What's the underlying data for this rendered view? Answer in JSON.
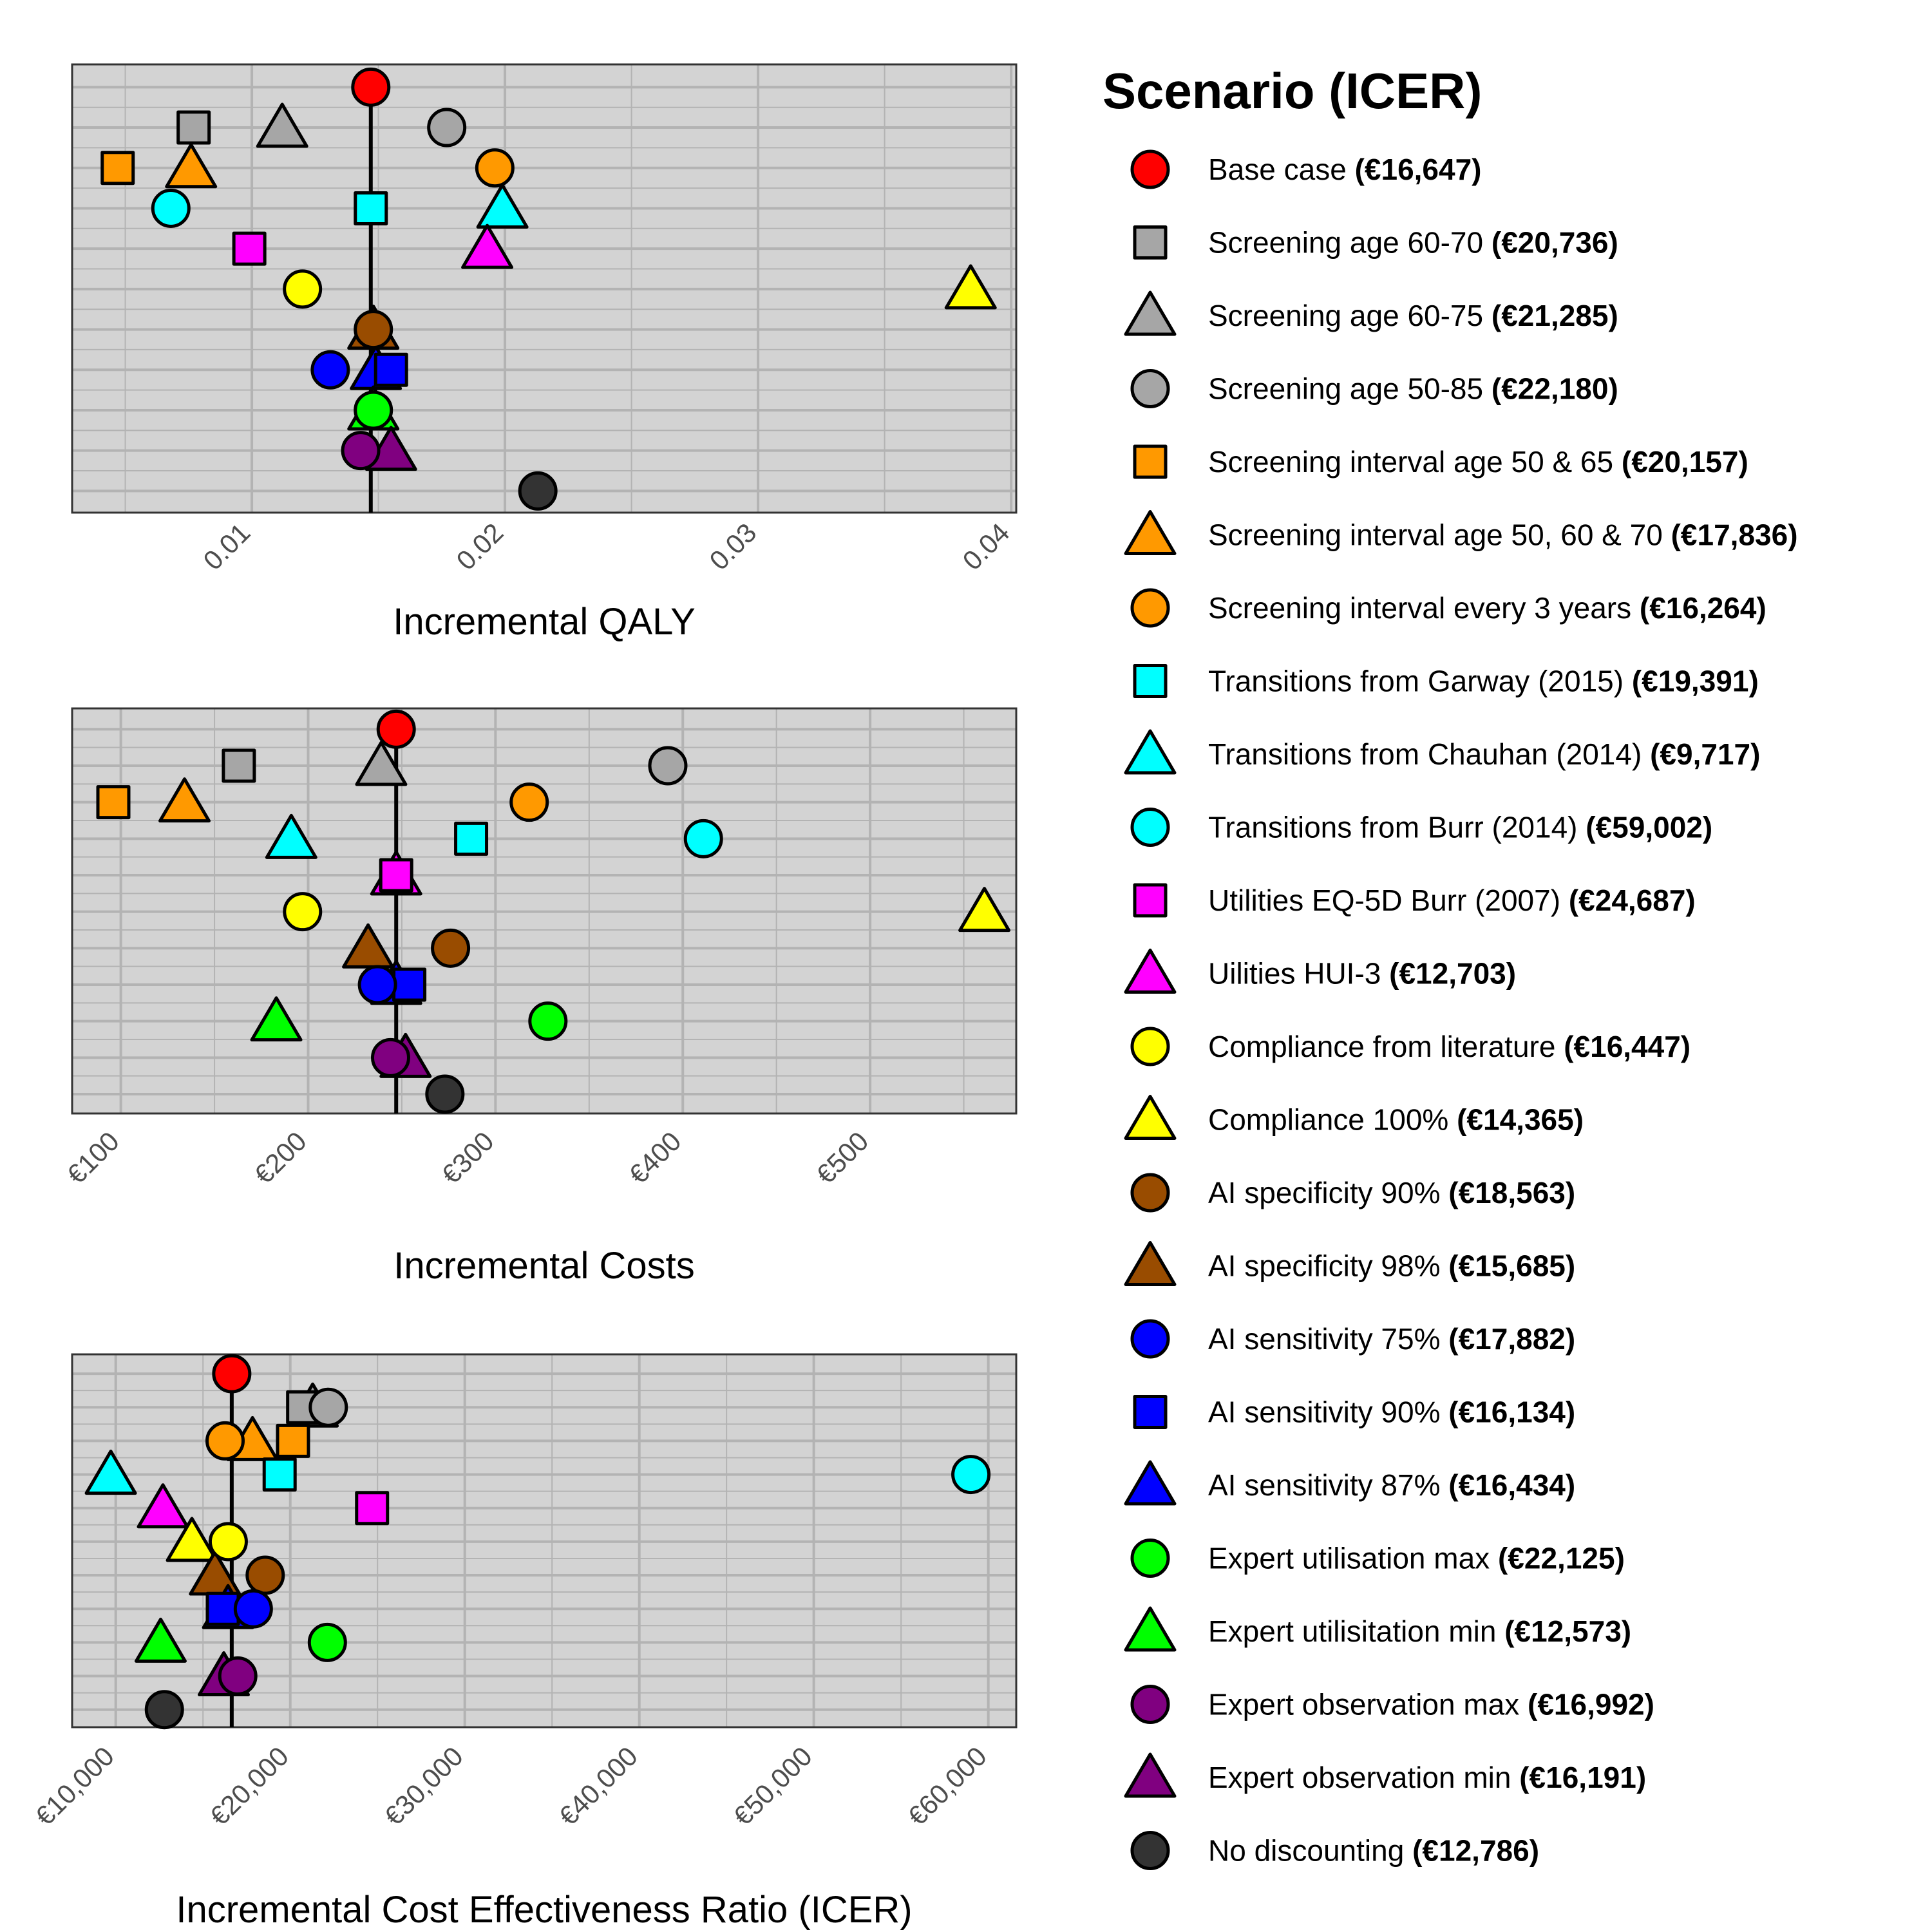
{
  "chart_data": {
    "type": "scatter",
    "legend": {
      "title": "Scenario (ICER)",
      "placement": "right"
    },
    "scenarios": [
      {
        "name": "Base case",
        "icer_label": "(€16,647)",
        "color": "#ff0000",
        "shape": "circle",
        "qaly": 0.0147,
        "cost": 247,
        "icer": 16647
      },
      {
        "name": "Screening age 60-70",
        "icer_label": "(€20,736)",
        "color": "#a6a6a6",
        "shape": "square",
        "qaly": 0.0077,
        "cost": 163,
        "icer": 20736
      },
      {
        "name": "Screening age 60-75",
        "icer_label": "(€21,285)",
        "color": "#a6a6a6",
        "shape": "triangle",
        "qaly": 0.0112,
        "cost": 239,
        "icer": 21285
      },
      {
        "name": "Screening age 50-85",
        "icer_label": "(€22,180)",
        "color": "#a6a6a6",
        "shape": "circle",
        "qaly": 0.0177,
        "cost": 392,
        "icer": 22180
      },
      {
        "name": "Screening interval age 50 & 65",
        "icer_label": "(€20,157)",
        "color": "#ff9900",
        "shape": "square",
        "qaly": 0.0047,
        "cost": 96,
        "icer": 20157
      },
      {
        "name": "Screening interval age 50, 60 & 70",
        "icer_label": "(€17,836)",
        "color": "#ff9900",
        "shape": "triangle",
        "qaly": 0.0076,
        "cost": 134,
        "icer": 17836
      },
      {
        "name": "Screening interval every 3 years",
        "icer_label": "(€16,264)",
        "color": "#ff9900",
        "shape": "circle",
        "qaly": 0.0196,
        "cost": 318,
        "icer": 16264
      },
      {
        "name": "Transitions from Garway (2015)",
        "icer_label": "(€19,391)",
        "color": "#00ffff",
        "shape": "square",
        "qaly": 0.0147,
        "cost": 287,
        "icer": 19391
      },
      {
        "name": "Transitions from Chauhan (2014)",
        "icer_label": "(€9,717)",
        "color": "#00ffff",
        "shape": "triangle",
        "qaly": 0.0199,
        "cost": 191,
        "icer": 9717
      },
      {
        "name": "Transitions from Burr (2014)",
        "icer_label": "(€59,002)",
        "color": "#00ffff",
        "shape": "circle",
        "qaly": 0.0068,
        "cost": 411,
        "icer": 59002
      },
      {
        "name": "Utilities EQ-5D  Burr (2007)",
        "icer_label": "(€24,687)",
        "color": "#ff00ff",
        "shape": "square",
        "qaly": 0.0099,
        "cost": 247,
        "icer": 24687
      },
      {
        "name": "Uilities HUI-3 ",
        "icer_label": "(€12,703)",
        "color": "#ff00ff",
        "shape": "triangle",
        "qaly": 0.0193,
        "cost": 247,
        "icer": 12703
      },
      {
        "name": "Compliance from literature",
        "icer_label": "(€16,447)",
        "color": "#ffff00",
        "shape": "circle",
        "qaly": 0.012,
        "cost": 197,
        "icer": 16447
      },
      {
        "name": "Compliance 100%",
        "icer_label": "(€14,365)",
        "color": "#ffff00",
        "shape": "triangle",
        "qaly": 0.0384,
        "cost": 561,
        "icer": 14365
      },
      {
        "name": "AI specificity 90%",
        "icer_label": "(€18,563)",
        "color": "#994c00",
        "shape": "circle",
        "qaly": 0.0148,
        "cost": 276,
        "icer": 18563
      },
      {
        "name": "AI specificity 98%",
        "icer_label": "(€15,685)",
        "color": "#994c00",
        "shape": "triangle",
        "qaly": 0.0148,
        "cost": 232,
        "icer": 15685
      },
      {
        "name": "AI sensitivity 75%",
        "icer_label": "(€17,882)",
        "color": "#0000ff",
        "shape": "circle",
        "qaly": 0.0131,
        "cost": 237,
        "icer": 17882
      },
      {
        "name": "AI sensitivity 90%",
        "icer_label": "(€16,134)",
        "color": "#0000ff",
        "shape": "square",
        "qaly": 0.0155,
        "cost": 254,
        "icer": 16134
      },
      {
        "name": "AI sensitivity 87%",
        "icer_label": "(€16,434)",
        "color": "#0000ff",
        "shape": "triangle",
        "qaly": 0.0149,
        "cost": 247,
        "icer": 16434
      },
      {
        "name": "Expert utilisation max",
        "icer_label": "(€22,125)",
        "color": "#00ff00",
        "shape": "circle",
        "qaly": 0.0148,
        "cost": 328,
        "icer": 22125
      },
      {
        "name": "Expert utilisitation min",
        "icer_label": "(€12,573)",
        "color": "#00ff00",
        "shape": "triangle",
        "qaly": 0.0148,
        "cost": 183,
        "icer": 12573
      },
      {
        "name": "Expert observation max",
        "icer_label": "(€16,992)",
        "color": "#800080",
        "shape": "circle",
        "qaly": 0.0143,
        "cost": 244,
        "icer": 16992
      },
      {
        "name": "Expert observation min",
        "icer_label": "(€16,191)",
        "color": "#800080",
        "shape": "triangle",
        "qaly": 0.0155,
        "cost": 252,
        "icer": 16191
      },
      {
        "name": "No discounting",
        "icer_label": "(€12,786)",
        "color": "#333333",
        "shape": "circle",
        "qaly": 0.0213,
        "cost": 273,
        "icer": 12786
      }
    ],
    "panels": [
      {
        "id": "qaly",
        "xlabel": "Incremental QALY",
        "xlim": [
          0.0029,
          0.0402
        ],
        "ticks": [
          0.01,
          0.02,
          0.03,
          0.04
        ],
        "tick_labels": [
          "0.01",
          "0.02",
          "0.03",
          "0.04"
        ],
        "reference_x": 0.0147,
        "y_order": [
          [
            "Base case"
          ],
          [
            "Screening age 60-70",
            "Screening age 60-75",
            "Screening age 50-85"
          ],
          [
            "Screening interval age 50 & 65",
            "Screening interval age 50, 60 & 70",
            "Screening interval every 3 years"
          ],
          [
            "Transitions from Garway (2015)",
            "Transitions from Chauhan (2014)",
            "Transitions from Burr (2014)"
          ],
          [
            "Utilities EQ-5D  Burr (2007)",
            "Uilities HUI-3 "
          ],
          [
            "Compliance from literature",
            "Compliance 100%"
          ],
          [
            "AI specificity 98%",
            "AI specificity 90%"
          ],
          [
            "AI sensitivity 75%",
            "AI sensitivity 87%",
            "AI sensitivity 90%"
          ],
          [
            "Expert utilisitation min",
            "Expert utilisation max"
          ],
          [
            "Expert observation min",
            "Expert observation max"
          ],
          [
            "No discounting"
          ]
        ]
      },
      {
        "id": "cost",
        "xlabel": "Incremental Costs",
        "xlim": [
          74,
          578
        ],
        "ticks": [
          100,
          200,
          300,
          400,
          500
        ],
        "tick_labels": [
          "€100",
          "€200",
          "€300",
          "€400",
          "€500"
        ],
        "reference_x": 247,
        "y_order": [
          [
            "Base case"
          ],
          [
            "Screening age 60-70",
            "Screening age 60-75",
            "Screening age 50-85"
          ],
          [
            "Screening interval age 50 & 65",
            "Screening interval age 50, 60 & 70",
            "Screening interval every 3 years"
          ],
          [
            "Transitions from Chauhan (2014)",
            "Transitions from Garway (2015)",
            "Transitions from Burr (2014)"
          ],
          [
            "Uilities HUI-3 ",
            "Utilities EQ-5D  Burr (2007)"
          ],
          [
            "Compliance from literature",
            "Compliance 100%"
          ],
          [
            "AI specificity 98%",
            "AI specificity 90%"
          ],
          [
            "AI sensitivity 87%",
            "AI sensitivity 75%",
            "AI sensitivity 90%"
          ],
          [
            "Expert utilisitation min",
            "Expert utilisation max"
          ],
          [
            "Expert observation min",
            "Expert observation max"
          ],
          [
            "No discounting"
          ]
        ]
      },
      {
        "id": "icer",
        "xlabel": "Incremental Cost Effectiveness Ratio (ICER)",
        "xlim": [
          7500,
          61600
        ],
        "ticks": [
          10000,
          20000,
          30000,
          40000,
          50000,
          60000
        ],
        "tick_labels": [
          "€10,000",
          "€20,000",
          "€30,000",
          "€40,000",
          "€50,000",
          "€60,000"
        ],
        "reference_x": 16647,
        "y_order": [
          [
            "Base case"
          ],
          [
            "Screening age 60-70",
            "Screening age 60-75",
            "Screening age 50-85"
          ],
          [
            "Screening interval every 3 years",
            "Screening interval age 50, 60 & 70",
            "Screening interval age 50 & 65"
          ],
          [
            "Transitions from Chauhan (2014)",
            "Transitions from Garway (2015)",
            "Transitions from Burr (2014)"
          ],
          [
            "Uilities HUI-3 ",
            "Utilities EQ-5D  Burr (2007)"
          ],
          [
            "Compliance 100%",
            "Compliance from literature"
          ],
          [
            "AI specificity 98%",
            "AI specificity 90%"
          ],
          [
            "AI sensitivity 90%",
            "AI sensitivity 87%",
            "AI sensitivity 75%"
          ],
          [
            "Expert utilisitation min",
            "Expert utilisation max"
          ],
          [
            "Expert observation min",
            "Expert observation max"
          ],
          [
            "No discounting"
          ]
        ]
      }
    ],
    "grid": true,
    "panel_background": "#d3d3d3",
    "grid_color": "#b3b3b3"
  }
}
